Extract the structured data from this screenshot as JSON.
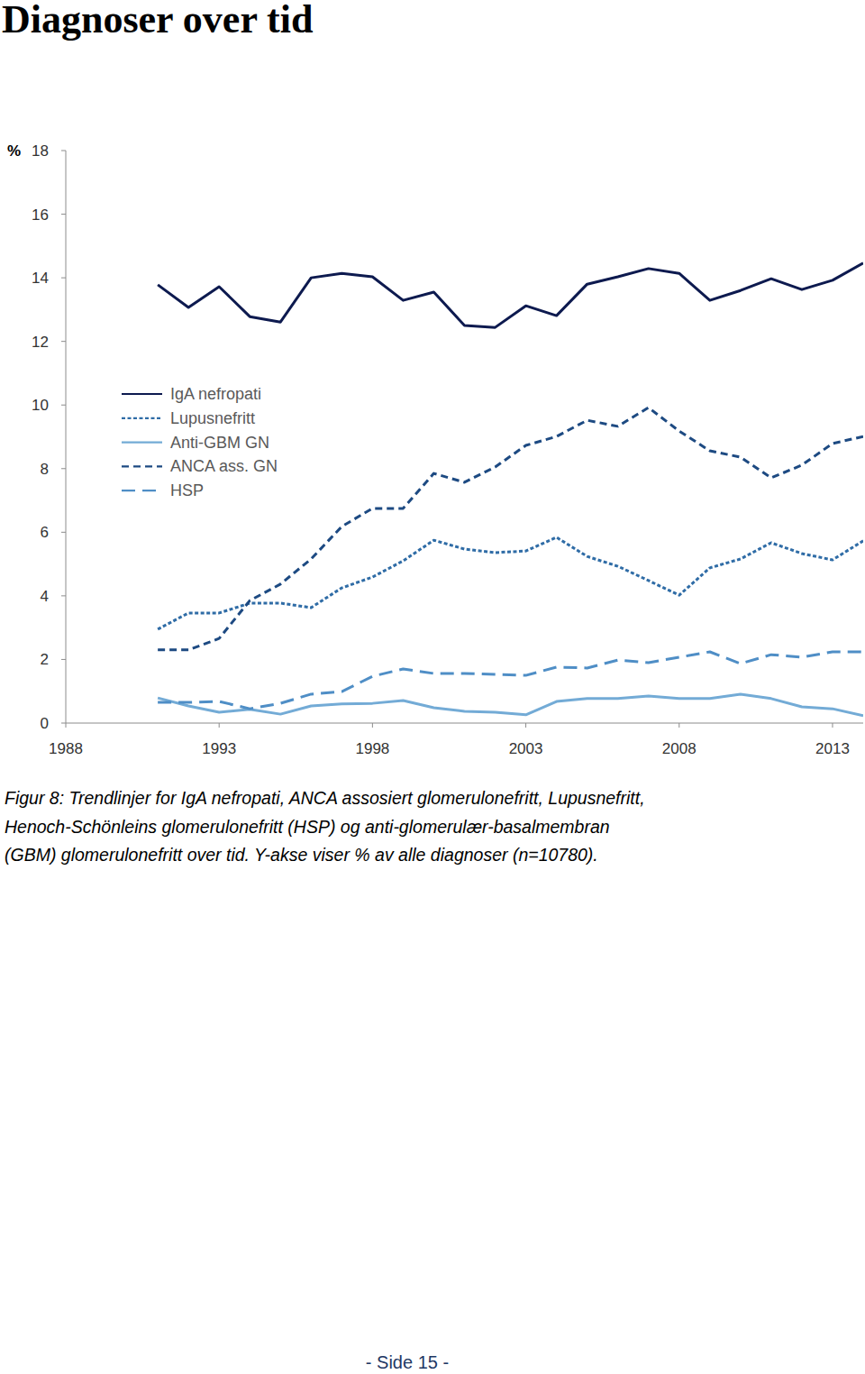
{
  "page_title": "Diagnoser over tid",
  "chart_data": {
    "type": "line",
    "ylabel": "%",
    "x": [
      1991,
      1992,
      1993,
      1994,
      1995,
      1996,
      1997,
      1998,
      1999,
      2000,
      2001,
      2002,
      2003,
      2004,
      2005,
      2006,
      2007,
      2008,
      2009,
      2010,
      2011,
      2012,
      2013,
      2014
    ],
    "series": [
      {
        "name": "IgA nefropati",
        "color": "#0d1a4f",
        "line_style": "solid",
        "values": [
          13.78,
          13.07,
          13.72,
          12.78,
          12.61,
          14.0,
          14.14,
          14.03,
          13.29,
          13.55,
          12.5,
          12.44,
          13.12,
          12.81,
          13.8,
          14.03,
          14.29,
          14.14,
          13.29,
          13.6,
          13.97,
          13.63,
          13.92,
          14.46
        ]
      },
      {
        "name": "Lupusnefritt",
        "color": "#2f6ca6",
        "line_style": "dotted",
        "values": [
          2.95,
          3.46,
          3.46,
          3.77,
          3.77,
          3.63,
          4.25,
          4.59,
          5.1,
          5.75,
          5.47,
          5.36,
          5.41,
          5.84,
          5.24,
          4.93,
          4.48,
          4.02,
          4.88,
          5.16,
          5.67,
          5.33,
          5.13,
          5.73
        ]
      },
      {
        "name": "Anti-GBM GN",
        "color": "#73abd6",
        "line_style": "solid",
        "values": [
          0.79,
          0.54,
          0.34,
          0.43,
          0.28,
          0.54,
          0.6,
          0.62,
          0.71,
          0.48,
          0.37,
          0.34,
          0.26,
          0.68,
          0.77,
          0.77,
          0.85,
          0.77,
          0.77,
          0.91,
          0.77,
          0.51,
          0.45,
          0.23
        ]
      },
      {
        "name": "ANCA ass. GN",
        "color": "#1d4a82",
        "line_style": "dashed",
        "values": [
          2.3,
          2.3,
          2.66,
          3.85,
          4.37,
          5.16,
          6.18,
          6.75,
          6.75,
          7.85,
          7.57,
          8.05,
          8.73,
          9.01,
          9.52,
          9.33,
          9.92,
          9.18,
          8.56,
          8.36,
          7.71,
          8.11,
          8.79,
          9.01
        ]
      },
      {
        "name": "HSP",
        "color": "#4f8ec6",
        "line_style": "long-dashed",
        "values": [
          0.65,
          0.65,
          0.68,
          0.45,
          0.62,
          0.91,
          0.99,
          1.47,
          1.7,
          1.56,
          1.56,
          1.53,
          1.5,
          1.76,
          1.73,
          1.98,
          1.9,
          2.07,
          2.24,
          1.87,
          2.15,
          2.07,
          2.24,
          2.24
        ]
      }
    ],
    "xlim": [
      1988,
      2014
    ],
    "ylim": [
      0,
      18
    ],
    "xticks": [
      1988,
      1993,
      1998,
      2003,
      2008,
      2013
    ],
    "yticks": [
      0,
      2,
      4,
      6,
      8,
      10,
      12,
      14,
      16,
      18
    ],
    "grid": false,
    "legend": "left"
  },
  "caption": [
    "Figur 8: Trendlinjer for IgA nefropati, ANCA assosiert glomerulonefritt, Lupusnefritt,",
    "Henoch-Schönleins glomerulonefritt (HSP) og anti-glomerulær-basalmembran",
    "(GBM) glomerulonefritt over tid. Y-akse viser % av alle diagnoser (n=10780)."
  ],
  "footer": "- Side 15 -"
}
